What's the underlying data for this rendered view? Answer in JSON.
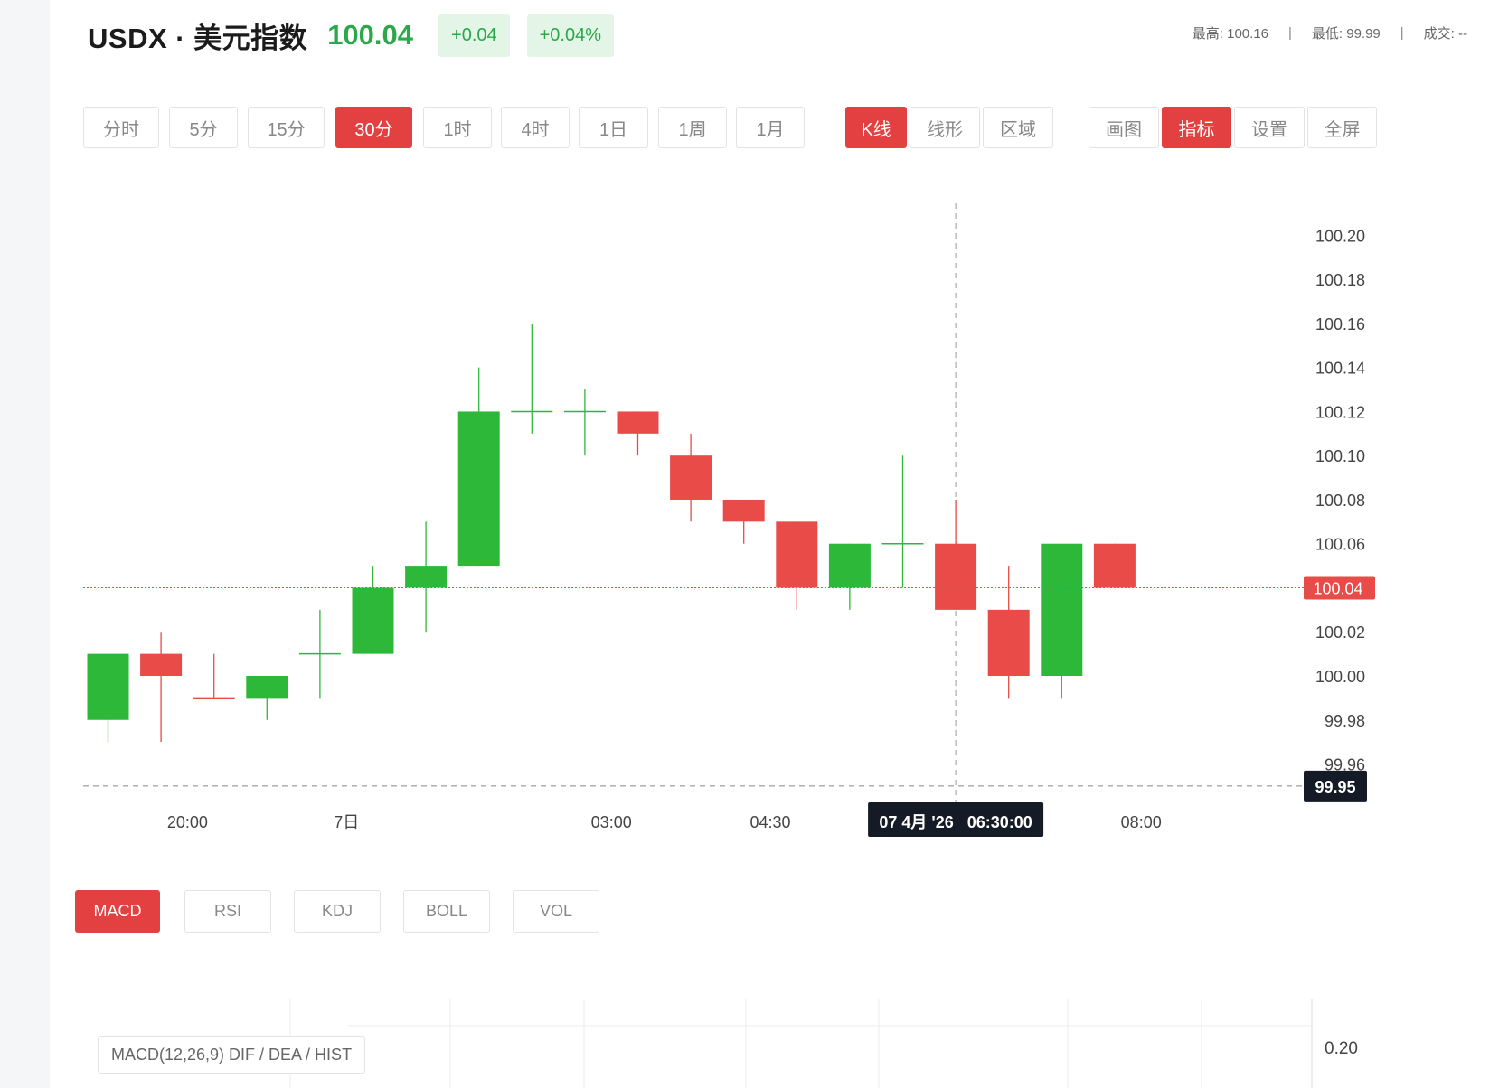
{
  "header": {
    "symbol": "USDX · 美元指数",
    "price": "100.04",
    "change": "+0.04",
    "change_pct": "+0.04%",
    "high_label": "最高: 100.16",
    "low_label": "最低: 99.99",
    "vol_label": "成交: --"
  },
  "toolbar": {
    "intervals": [
      "分时",
      "5分",
      "15分",
      "30分",
      "1时",
      "4时",
      "1日",
      "1周",
      "1月"
    ],
    "active_interval": "30分",
    "chart_types": [
      "K线",
      "线形",
      "区域"
    ],
    "active_chart_type": "K线",
    "tools": [
      "画图",
      "指标",
      "设置",
      "全屏"
    ],
    "active_tool": "指标"
  },
  "indicators": {
    "tabs": [
      "MACD",
      "RSI",
      "KDJ",
      "BOLL",
      "VOL"
    ],
    "active": "MACD",
    "macd_label": "MACD(12,26,9) DIF / DEA / HIST",
    "macd_axis_tick": "0.20"
  },
  "colors": {
    "up": "#2eb83a",
    "down": "#e84b48",
    "accent": "#e34141"
  },
  "crosshair": {
    "time_label": "07 4月 '26   06:30:00",
    "value_label": "99.95",
    "value": 99.95
  },
  "chart_data": {
    "type": "candlestick",
    "ylim": [
      99.94,
      100.22
    ],
    "y_ticks": [
      "100.20",
      "100.18",
      "100.16",
      "100.14",
      "100.12",
      "100.10",
      "100.08",
      "100.06",
      "100.04",
      "100.02",
      "100.00",
      "99.98",
      "99.96"
    ],
    "x_tick_labels": [
      {
        "label": "20:00",
        "at": 1.5
      },
      {
        "label": "7日",
        "at": 4.5
      },
      {
        "label": "03:00",
        "at": 9.5
      },
      {
        "label": "04:30",
        "at": 12.5
      },
      {
        "label": "08:00",
        "at": 19.5
      }
    ],
    "last_price": 100.04,
    "crosshair_index": 16,
    "candles": [
      {
        "o": 99.98,
        "h": 100.01,
        "l": 99.97,
        "c": 100.01,
        "dir": "up"
      },
      {
        "o": 100.01,
        "h": 100.02,
        "l": 99.97,
        "c": 100.0,
        "dir": "down"
      },
      {
        "o": 99.99,
        "h": 100.01,
        "l": 99.99,
        "c": 99.99,
        "dir": "down"
      },
      {
        "o": 99.99,
        "h": 100.0,
        "l": 99.98,
        "c": 100.0,
        "dir": "up"
      },
      {
        "o": 100.01,
        "h": 100.03,
        "l": 99.99,
        "c": 100.01,
        "dir": "up"
      },
      {
        "o": 100.01,
        "h": 100.05,
        "l": 100.01,
        "c": 100.04,
        "dir": "up"
      },
      {
        "o": 100.04,
        "h": 100.07,
        "l": 100.02,
        "c": 100.05,
        "dir": "up"
      },
      {
        "o": 100.05,
        "h": 100.14,
        "l": 100.05,
        "c": 100.12,
        "dir": "up"
      },
      {
        "o": 100.12,
        "h": 100.16,
        "l": 100.11,
        "c": 100.12,
        "dir": "up"
      },
      {
        "o": 100.12,
        "h": 100.13,
        "l": 100.1,
        "c": 100.12,
        "dir": "up"
      },
      {
        "o": 100.12,
        "h": 100.12,
        "l": 100.1,
        "c": 100.11,
        "dir": "down"
      },
      {
        "o": 100.1,
        "h": 100.11,
        "l": 100.07,
        "c": 100.08,
        "dir": "down"
      },
      {
        "o": 100.08,
        "h": 100.08,
        "l": 100.06,
        "c": 100.07,
        "dir": "down"
      },
      {
        "o": 100.07,
        "h": 100.07,
        "l": 100.03,
        "c": 100.04,
        "dir": "down"
      },
      {
        "o": 100.04,
        "h": 100.06,
        "l": 100.03,
        "c": 100.06,
        "dir": "up"
      },
      {
        "o": 100.06,
        "h": 100.1,
        "l": 100.04,
        "c": 100.06,
        "dir": "up"
      },
      {
        "o": 100.06,
        "h": 100.08,
        "l": 100.03,
        "c": 100.03,
        "dir": "down"
      },
      {
        "o": 100.03,
        "h": 100.05,
        "l": 99.99,
        "c": 100.0,
        "dir": "down"
      },
      {
        "o": 100.0,
        "h": 100.06,
        "l": 99.99,
        "c": 100.06,
        "dir": "up"
      },
      {
        "o": 100.06,
        "h": 100.06,
        "l": 100.04,
        "c": 100.04,
        "dir": "down"
      }
    ]
  }
}
